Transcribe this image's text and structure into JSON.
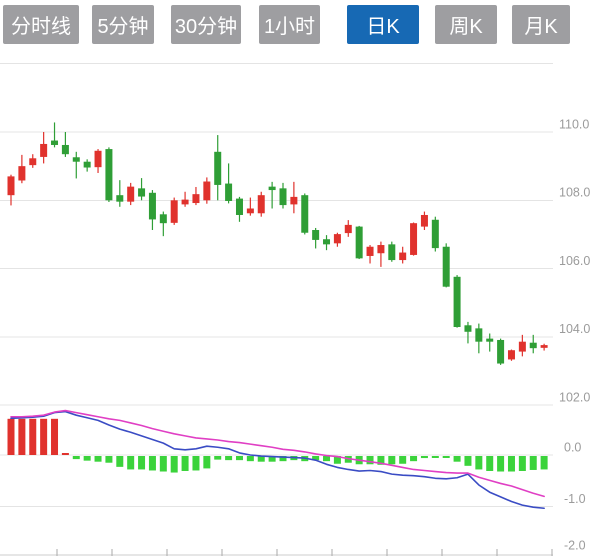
{
  "toolbar": {
    "items": [
      {
        "key": "timeline",
        "label": "分时线",
        "selected": false
      },
      {
        "key": "5min",
        "label": "5分钟",
        "selected": false
      },
      {
        "key": "30min",
        "label": "30分钟",
        "selected": false
      },
      {
        "key": "1hour",
        "label": "1小时",
        "selected": false
      },
      {
        "key": "daily-k",
        "label": "日K",
        "selected": true
      },
      {
        "key": "weekly-k",
        "label": "周K",
        "selected": false
      },
      {
        "key": "monthly-k",
        "label": "月K",
        "selected": false
      }
    ]
  },
  "colors": {
    "up": "#e0322d",
    "down": "#2f9e36",
    "hist_up": "#e0322d",
    "hist_down": "#3bd33b",
    "dif_line": "#3a4cc4",
    "dea_line": "#e03fc4",
    "grid": "#e4e4e4",
    "axis_line": "#cccccc",
    "tick": "#aaaaaa",
    "label": "#9b9b9b",
    "tab_bg": "#9e9ea1",
    "tab_selected_bg": "#1769b4",
    "tab_text": "#ffffff"
  },
  "chart_data": {
    "type": "candlestick",
    "n_candles": 50,
    "panels": [
      {
        "name": "price",
        "y_top_value": 112,
        "y_ticks": [
          {
            "label": "110.0",
            "value": 110
          },
          {
            "label": "108.0",
            "value": 108
          },
          {
            "label": "106.0",
            "value": 106
          },
          {
            "label": "104.0",
            "value": 104
          },
          {
            "label": "102.0",
            "value": 102
          }
        ],
        "series": {
          "open": [
            108.15,
            108.58,
            109.03,
            109.27,
            109.75,
            109.62,
            109.26,
            109.13,
            108.97,
            109.5,
            108.15,
            107.96,
            108.35,
            108.22,
            107.59,
            107.34,
            107.88,
            107.92,
            108.0,
            109.42,
            108.49,
            108.05,
            107.62,
            107.62,
            108.4,
            108.35,
            107.88,
            108.15,
            107.13,
            106.86,
            106.74,
            107.04,
            107.23,
            106.37,
            106.45,
            106.71,
            106.25,
            106.4,
            107.23,
            107.43,
            106.64,
            105.76,
            104.34,
            104.25,
            103.95,
            103.91,
            103.34,
            103.57,
            103.83,
            103.68
          ],
          "high": [
            108.75,
            109.33,
            109.35,
            110.0,
            110.28,
            110.0,
            109.42,
            109.2,
            109.5,
            109.55,
            108.59,
            108.51,
            108.65,
            108.3,
            107.67,
            108.08,
            108.25,
            108.39,
            108.67,
            109.91,
            109.08,
            108.1,
            108.08,
            108.25,
            108.54,
            108.51,
            108.54,
            108.2,
            107.19,
            106.98,
            107.05,
            107.42,
            107.25,
            106.69,
            106.79,
            106.79,
            106.64,
            107.35,
            107.67,
            107.52,
            106.74,
            105.81,
            104.44,
            104.39,
            104.1,
            103.95,
            103.63,
            104.06,
            104.06,
            103.8
          ],
          "low": [
            107.85,
            108.5,
            108.95,
            109.08,
            109.55,
            109.27,
            108.64,
            108.84,
            108.8,
            107.95,
            107.81,
            107.86,
            108.0,
            107.13,
            106.95,
            107.28,
            107.81,
            107.86,
            107.9,
            108.0,
            107.91,
            107.37,
            107.55,
            107.52,
            107.76,
            107.76,
            107.62,
            107.0,
            106.59,
            106.54,
            106.64,
            106.93,
            106.28,
            106.15,
            106.05,
            106.2,
            106.15,
            106.38,
            107.13,
            106.5,
            105.45,
            104.27,
            103.81,
            103.52,
            103.57,
            103.18,
            103.3,
            103.43,
            103.52,
            103.6
          ],
          "close": [
            108.7,
            109.0,
            109.23,
            109.65,
            109.62,
            109.35,
            109.13,
            108.96,
            109.45,
            108.0,
            107.96,
            108.4,
            108.11,
            107.44,
            107.33,
            108.0,
            108.02,
            108.18,
            108.55,
            108.45,
            107.98,
            107.57,
            107.76,
            108.15,
            108.3,
            107.86,
            108.1,
            107.05,
            106.84,
            106.71,
            107.01,
            107.28,
            106.3,
            106.64,
            106.69,
            106.25,
            106.47,
            107.33,
            107.57,
            106.6,
            105.47,
            104.29,
            104.15,
            103.86,
            103.86,
            103.22,
            103.61,
            103.86,
            103.67,
            103.76
          ]
        }
      },
      {
        "name": "macd",
        "y_ticks": [
          {
            "label": "0.0",
            "value": 0
          },
          {
            "label": "-1.0",
            "value": -1
          },
          {
            "label": "-2.0",
            "value": -2
          }
        ],
        "series": [
          {
            "name": "histogram",
            "type": "bar",
            "values": [
              0.7,
              0.7,
              0.7,
              0.7,
              0.7,
              0.02,
              -0.06,
              -0.09,
              -0.11,
              -0.13,
              -0.21,
              -0.26,
              -0.26,
              -0.28,
              -0.3,
              -0.32,
              -0.29,
              -0.28,
              -0.24,
              -0.07,
              -0.08,
              -0.08,
              -0.1,
              -0.11,
              -0.11,
              -0.1,
              -0.08,
              -0.1,
              -0.08,
              -0.1,
              -0.15,
              -0.13,
              -0.16,
              -0.16,
              -0.17,
              -0.16,
              -0.15,
              -0.1,
              -0.04,
              -0.03,
              -0.02,
              -0.11,
              -0.19,
              -0.26,
              -0.29,
              -0.3,
              -0.3,
              -0.29,
              -0.27,
              -0.26
            ]
          },
          {
            "name": "dif",
            "type": "line",
            "values": [
              0.71,
              0.72,
              0.73,
              0.75,
              0.82,
              0.84,
              0.77,
              0.72,
              0.67,
              0.58,
              0.5,
              0.44,
              0.37,
              0.3,
              0.23,
              0.12,
              0.1,
              0.12,
              0.17,
              0.15,
              0.12,
              0.04,
              0.0,
              -0.02,
              -0.03,
              -0.04,
              -0.05,
              -0.06,
              -0.1,
              -0.18,
              -0.24,
              -0.28,
              -0.31,
              -0.3,
              -0.32,
              -0.37,
              -0.39,
              -0.4,
              -0.42,
              -0.45,
              -0.46,
              -0.44,
              -0.37,
              -0.58,
              -0.72,
              -0.81,
              -0.9,
              -0.97,
              -1.01,
              -1.03
            ]
          },
          {
            "name": "dea",
            "type": "line",
            "values": [
              0.74,
              0.74,
              0.75,
              0.77,
              0.83,
              0.86,
              0.82,
              0.78,
              0.74,
              0.7,
              0.67,
              0.62,
              0.57,
              0.51,
              0.46,
              0.41,
              0.37,
              0.33,
              0.31,
              0.29,
              0.26,
              0.24,
              0.21,
              0.18,
              0.15,
              0.11,
              0.09,
              0.06,
              0.02,
              -0.01,
              -0.03,
              -0.07,
              -0.1,
              -0.13,
              -0.16,
              -0.2,
              -0.24,
              -0.28,
              -0.3,
              -0.32,
              -0.34,
              -0.35,
              -0.35,
              -0.43,
              -0.49,
              -0.55,
              -0.6,
              -0.67,
              -0.74,
              -0.8
            ]
          }
        ]
      }
    ]
  }
}
